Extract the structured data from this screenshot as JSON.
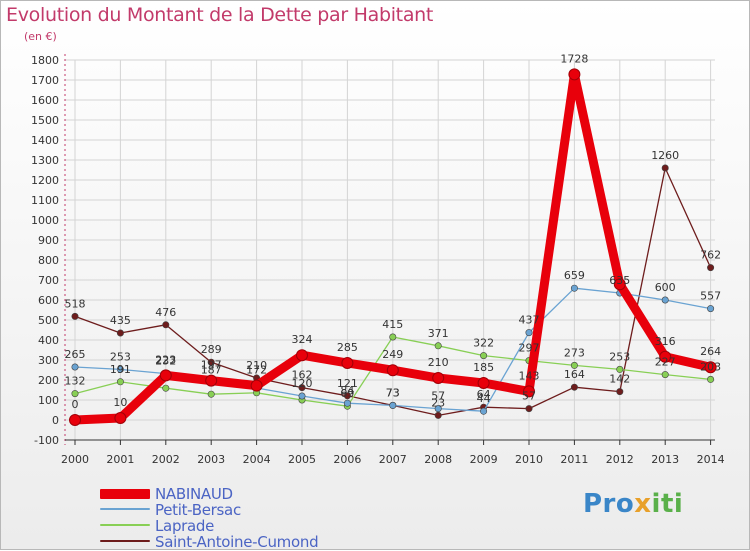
{
  "header": {
    "title": "Evolution du Montant de la Dette par Habitant",
    "subtitle": "(en €)"
  },
  "brand": {
    "part1": "Pro",
    "part2": "x",
    "part3": "iti"
  },
  "colors": {
    "title": "#c23a6a",
    "legend_text": "#4b64c4",
    "grid": "#d4d4d4"
  },
  "chart_data": {
    "type": "line",
    "x": [
      "2000",
      "2001",
      "2002",
      "2003",
      "2004",
      "2005",
      "2006",
      "2007",
      "2008",
      "2009",
      "2010",
      "2011",
      "2012",
      "2013",
      "2014"
    ],
    "y_ticks": [
      "-100",
      "0",
      "100",
      "200",
      "300",
      "400",
      "500",
      "600",
      "700",
      "800",
      "900",
      "1000",
      "1100",
      "1200",
      "1300",
      "1400",
      "1500",
      "1600",
      "1700",
      "1800"
    ],
    "ylim": [
      -100,
      1800
    ],
    "grid": true,
    "legend_position": "bottom-left",
    "series": [
      {
        "name": "NABINAUD",
        "color": "#e8000b",
        "values": [
          0,
          10,
          223,
          197,
          172,
          324,
          285,
          249,
          210,
          185,
          143,
          1728,
          679,
          316,
          264
        ],
        "labels": [
          "0",
          "10",
          "223",
          "197",
          "172",
          "324",
          "285",
          "249",
          "210",
          "185",
          "143",
          "1728",
          "",
          "316",
          "264"
        ]
      },
      {
        "name": "Petit-Bersac",
        "color": "#6aa3d2",
        "values": [
          265,
          253,
          232,
          187,
          160,
          120,
          84,
          73,
          57,
          44,
          437,
          659,
          635,
          600,
          557
        ],
        "labels": [
          "265",
          "253",
          "232",
          "187",
          "",
          "120",
          "84",
          "73",
          "57",
          "44",
          "437",
          "659",
          "635",
          "600",
          "557"
        ]
      },
      {
        "name": "Laprade",
        "color": "#88cf55",
        "values": [
          132,
          191,
          159,
          129,
          136,
          100,
          69,
          415,
          371,
          322,
          297,
          273,
          253,
          227,
          203
        ],
        "labels": [
          "132",
          "191",
          "",
          "",
          "",
          "",
          "69",
          "415",
          "371",
          "322",
          "297",
          "273",
          "253",
          "227",
          "203"
        ]
      },
      {
        "name": "Saint-Antoine-Cumond",
        "color": "#6e1d1d",
        "values": [
          518,
          435,
          476,
          289,
          210,
          162,
          121,
          73,
          23,
          64,
          57,
          164,
          142,
          1260,
          762
        ],
        "labels": [
          "518",
          "435",
          "476",
          "289",
          "210",
          "162",
          "121",
          "73",
          "23",
          "64",
          "57",
          "164",
          "142",
          "1260",
          "762"
        ]
      }
    ]
  }
}
